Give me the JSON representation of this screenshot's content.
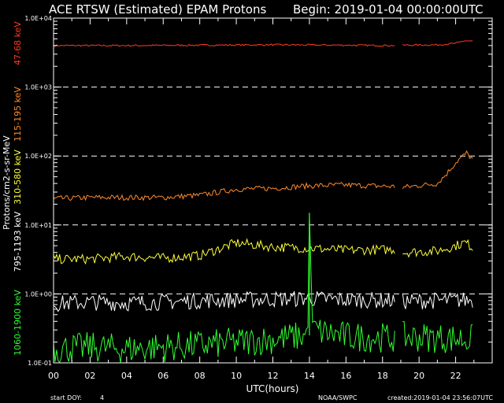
{
  "title": "ACE RTSW (Estimated) EPAM Protons",
  "begin_label": "Begin: 2019-01-04 00:00:00UTC",
  "footer": {
    "start_doy_label": "start DOY:",
    "start_doy": "4",
    "agency": "NOAA/SWPC",
    "created": "created:2019-01-04 23:56:07UTC"
  },
  "colors": {
    "background": "#000000",
    "frame": "#ffffff",
    "grid": "#ffffff",
    "ch_47_68": "#ff3b1f",
    "ch_115_195": "#ff8a2a",
    "ch_310_580": "#ffff3a",
    "ch_795_1193": "#ffffff",
    "ch_1060_1900": "#30ff30"
  },
  "chart_data": {
    "type": "line",
    "xlabel": "UTC(hours)",
    "ylabel": "Protons/cm2-s-sr-MeV",
    "xlim": [
      0,
      24
    ],
    "ylim": [
      0.1,
      10000
    ],
    "yscale": "log",
    "grid": "dashed horizontal lines at each decade",
    "x_tick_labels": [
      "00",
      "02",
      "04",
      "06",
      "08",
      "10",
      "12",
      "14",
      "16",
      "18",
      "20",
      "22"
    ],
    "y_tick_labels": [
      "1.0E-01",
      "1.0E+00",
      "1.0E+01",
      "1.0E+02",
      "1.0E+03",
      "1.0E+04"
    ],
    "gap": [
      18.7,
      19.1
    ],
    "series": [
      {
        "name": "47-68 keV",
        "color": "#ff3b1f",
        "noise": 0.012,
        "x": [
          0,
          4,
          8,
          12,
          16,
          18.7,
          19.1,
          21,
          22,
          22.5,
          23
        ],
        "values": [
          4000,
          4000,
          4050,
          4100,
          4050,
          4000,
          4050,
          4100,
          4300,
          4700,
          4600
        ]
      },
      {
        "name": "115-195 keV",
        "color": "#ff8a2a",
        "noise": 0.04,
        "x": [
          0,
          2,
          4,
          6,
          8,
          10,
          12,
          14,
          16,
          18.7,
          19.1,
          21,
          21.5,
          22,
          22.3,
          22.6,
          23
        ],
        "values": [
          24,
          25,
          25,
          25,
          27,
          33,
          34,
          37,
          38,
          36,
          35,
          40,
          55,
          80,
          95,
          110,
          85
        ]
      },
      {
        "name": "310-580 keV",
        "color": "#ffff3a",
        "noise": 0.07,
        "x": [
          0,
          2,
          4,
          6,
          8,
          10,
          12,
          14,
          16,
          18.7,
          19.1,
          21,
          22,
          22.5,
          23
        ],
        "values": [
          3.2,
          3.2,
          3.5,
          3.3,
          3.6,
          5.5,
          4.8,
          4.6,
          4.3,
          4.4,
          4.0,
          4.2,
          5.0,
          5.6,
          4.6
        ]
      },
      {
        "name": "795-1193 keV",
        "color": "#ffffff",
        "noise": 0.12,
        "x": [
          0,
          2,
          4,
          6,
          8,
          10,
          12,
          14,
          16,
          18.7,
          19.1,
          21,
          23
        ],
        "values": [
          0.72,
          0.76,
          0.74,
          0.76,
          0.8,
          0.82,
          0.84,
          0.86,
          0.82,
          0.8,
          0.78,
          0.8,
          0.82
        ]
      },
      {
        "name": "1060-1900 keV",
        "color": "#30ff30",
        "noise": 0.22,
        "x": [
          0,
          2,
          4,
          6,
          8,
          10,
          12,
          13.9,
          14.0,
          14.1,
          14.2,
          16,
          18.7,
          19.1,
          21,
          23
        ],
        "values": [
          0.16,
          0.17,
          0.16,
          0.17,
          0.18,
          0.2,
          0.22,
          0.25,
          15,
          0.9,
          0.3,
          0.24,
          0.23,
          0.24,
          0.23,
          0.22
        ]
      }
    ]
  }
}
